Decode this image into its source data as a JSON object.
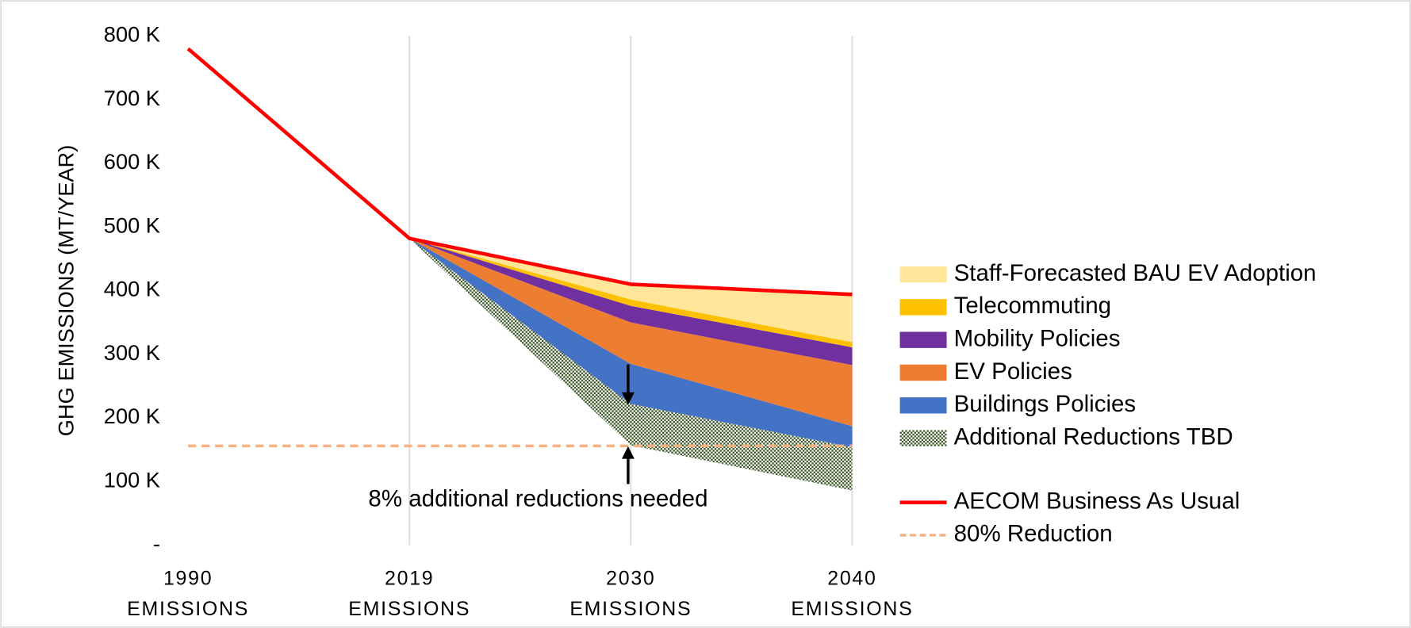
{
  "chart_data": {
    "type": "stacked_area",
    "categories": [
      "1990 EMISSIONS",
      "2019 EMISSIONS",
      "2030 EMISSIONS",
      "2040 EMISSIONS"
    ],
    "y_label": "GHG EMISSIONS  (MT/YEAR)",
    "annotation": "8% additional reductions needed",
    "ylim": [
      0,
      800000
    ],
    "yticks": [
      {
        "value": 0,
        "label": "-"
      },
      {
        "value": 100000,
        "label": "100 K"
      },
      {
        "value": 200000,
        "label": "200 K"
      },
      {
        "value": 300000,
        "label": "300 K"
      },
      {
        "value": 400000,
        "label": "400 K"
      },
      {
        "value": 500000,
        "label": "500 K"
      },
      {
        "value": 600000,
        "label": "600 K"
      },
      {
        "value": 700000,
        "label": "700 K"
      },
      {
        "value": 800000,
        "label": "800 K"
      }
    ],
    "stack_base": [
      null,
      482000,
      157000,
      86000
    ],
    "series": [
      {
        "name": "Additional Reductions TBD",
        "color": "#375623",
        "pattern": "hatch",
        "values": [
          null,
          0,
          65000,
          68000
        ]
      },
      {
        "name": "Buildings Policies",
        "color": "#4472c4",
        "values": [
          null,
          0,
          63000,
          33000
        ]
      },
      {
        "name": "EV Policies",
        "color": "#ed7d31",
        "values": [
          null,
          0,
          65000,
          96000
        ]
      },
      {
        "name": "Mobility Policies",
        "color": "#7030a0",
        "values": [
          null,
          0,
          26000,
          28000
        ]
      },
      {
        "name": "Telecommuting",
        "color": "#ffc000",
        "values": [
          null,
          0,
          10000,
          8000
        ]
      },
      {
        "name": "Staff-Forecasted BAU EV Adoption",
        "color": "#ffe699",
        "values": [
          null,
          0,
          24000,
          75000
        ]
      }
    ],
    "lines": [
      {
        "name": "AECOM Business As Usual",
        "color": "#ff0000",
        "values": [
          780000,
          482000,
          410000,
          394000
        ]
      },
      {
        "name": "80% Reduction",
        "color": "#f4b183",
        "dashed": true,
        "values": [
          156000,
          156000,
          156000,
          156000
        ]
      }
    ]
  }
}
